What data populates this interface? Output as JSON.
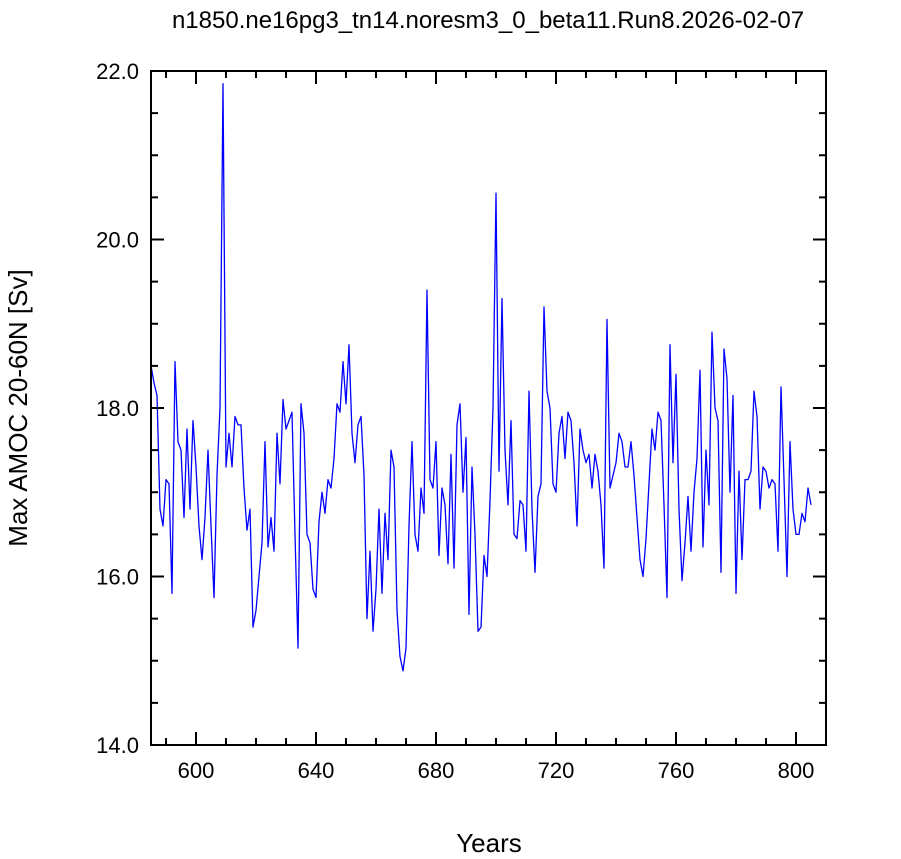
{
  "chart_data": {
    "type": "line",
    "title": "n1850.ne16pg3_tn14.noresm3_0_beta11.Run8.2026-02-07",
    "xlabel": "Years",
    "ylabel": "Max AMOC 20-60N [Sv]",
    "xlim": [
      585,
      810
    ],
    "ylim": [
      14.0,
      22.0
    ],
    "xticks": [
      600,
      640,
      680,
      720,
      760,
      800
    ],
    "xtick_labels": [
      "600",
      "640",
      "680",
      "720",
      "760",
      "800"
    ],
    "yticks": [
      14.0,
      16.0,
      18.0,
      20.0,
      22.0
    ],
    "ytick_labels": [
      "14.0",
      "16.0",
      "18.0",
      "20.0",
      "22.0"
    ],
    "grid": false,
    "series": [
      {
        "color": "#0000ff",
        "x_start": 585,
        "x_step": 1,
        "values": [
          18.5,
          18.3,
          18.15,
          16.8,
          16.6,
          17.15,
          17.1,
          15.8,
          18.55,
          17.6,
          17.5,
          16.7,
          17.75,
          16.8,
          17.85,
          17.3,
          16.6,
          16.2,
          16.7,
          17.5,
          16.6,
          15.75,
          17.2,
          18.0,
          21.85,
          17.3,
          17.7,
          17.3,
          17.9,
          17.8,
          17.8,
          17.05,
          16.55,
          16.8,
          15.4,
          15.6,
          16.0,
          16.4,
          17.6,
          16.35,
          16.7,
          16.3,
          17.7,
          17.1,
          18.1,
          17.75,
          17.85,
          17.95,
          16.5,
          15.15,
          18.05,
          17.7,
          16.5,
          16.4,
          15.85,
          15.75,
          16.65,
          17.0,
          16.75,
          17.15,
          17.05,
          17.4,
          18.05,
          17.95,
          18.55,
          18.05,
          18.75,
          17.7,
          17.35,
          17.8,
          17.9,
          17.2,
          15.5,
          16.3,
          15.35,
          15.85,
          16.8,
          15.8,
          16.75,
          16.2,
          17.5,
          17.3,
          15.6,
          15.05,
          14.88,
          15.15,
          16.6,
          17.6,
          16.5,
          16.3,
          17.05,
          16.75,
          19.4,
          17.15,
          17.05,
          17.6,
          16.25,
          17.05,
          16.85,
          16.15,
          17.45,
          16.1,
          17.8,
          18.05,
          17.0,
          17.65,
          15.55,
          17.3,
          16.5,
          15.35,
          15.4,
          16.25,
          16.0,
          16.9,
          18.0,
          20.55,
          17.25,
          19.3,
          17.5,
          16.85,
          17.85,
          16.5,
          16.45,
          16.9,
          16.85,
          16.3,
          18.2,
          16.8,
          16.05,
          16.95,
          17.1,
          19.2,
          18.2,
          18.0,
          17.1,
          17.0,
          17.7,
          17.9,
          17.4,
          17.95,
          17.85,
          17.35,
          16.6,
          17.75,
          17.5,
          17.35,
          17.45,
          17.05,
          17.45,
          17.25,
          16.85,
          16.1,
          19.05,
          17.05,
          17.2,
          17.35,
          17.7,
          17.6,
          17.3,
          17.3,
          17.6,
          17.2,
          16.7,
          16.2,
          16.0,
          16.45,
          17.1,
          17.75,
          17.5,
          17.95,
          17.85,
          16.85,
          15.75,
          18.75,
          17.35,
          18.4,
          16.8,
          15.95,
          16.4,
          16.95,
          16.3,
          17.0,
          17.4,
          18.45,
          16.35,
          17.5,
          16.85,
          18.9,
          18.0,
          17.85,
          16.05,
          18.7,
          18.35,
          17.0,
          18.15,
          15.8,
          17.25,
          16.2,
          17.15,
          17.15,
          17.25,
          18.2,
          17.9,
          16.8,
          17.3,
          17.25,
          17.05,
          17.15,
          17.1,
          16.3,
          18.25,
          17.15,
          16.0,
          17.6,
          16.8,
          16.5,
          16.5,
          16.75,
          16.65,
          17.05,
          16.85
        ]
      }
    ]
  }
}
